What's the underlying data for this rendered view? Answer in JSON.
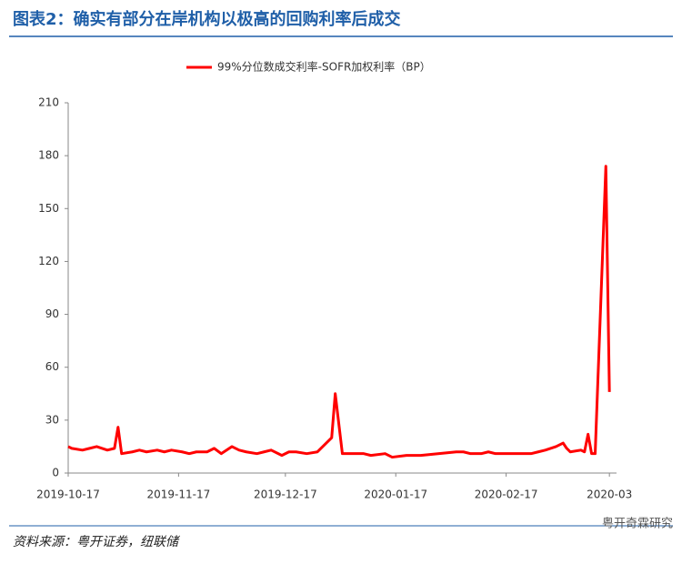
{
  "chart_data": {
    "type": "line",
    "title": "图表2：确实有部分在岸机构以极高的回购利率后成交",
    "source": "资料来源：粤开证券，纽联储",
    "watermark": "粤开奇霖研究",
    "x": [
      "2019-10-17",
      "2019-10-18",
      "2019-10-21",
      "2019-10-23",
      "2019-10-25",
      "2019-10-28",
      "2019-10-30",
      "2019-10-31",
      "2019-11-01",
      "2019-11-04",
      "2019-11-06",
      "2019-11-08",
      "2019-11-11",
      "2019-11-13",
      "2019-11-15",
      "2019-11-18",
      "2019-11-20",
      "2019-11-22",
      "2019-11-25",
      "2019-11-27",
      "2019-11-29",
      "2019-12-02",
      "2019-12-04",
      "2019-12-06",
      "2019-12-09",
      "2019-12-11",
      "2019-12-13",
      "2019-12-16",
      "2019-12-18",
      "2019-12-20",
      "2019-12-23",
      "2019-12-26",
      "2019-12-30",
      "2019-12-31",
      "2020-01-02",
      "2020-01-06",
      "2020-01-08",
      "2020-01-10",
      "2020-01-14",
      "2020-01-16",
      "2020-01-20",
      "2020-01-22",
      "2020-01-24",
      "2020-02-03",
      "2020-02-05",
      "2020-02-07",
      "2020-02-10",
      "2020-02-12",
      "2020-02-14",
      "2020-02-18",
      "2020-02-20",
      "2020-02-24",
      "2020-02-26",
      "2020-02-28",
      "2020-03-02",
      "2020-03-04",
      "2020-03-05",
      "2020-03-06",
      "2020-03-09",
      "2020-03-10",
      "2020-03-11",
      "2020-03-12",
      "2020-03-13",
      "2020-03-16",
      "2020-03-17"
    ],
    "series": [
      {
        "name": "99%分位数成交利率-SOFR加权利率（BP）",
        "color": "#ff0000",
        "values": [
          15,
          14,
          13,
          14,
          15,
          13,
          14,
          26,
          11,
          12,
          13,
          12,
          13,
          12,
          13,
          12,
          11,
          12,
          12,
          14,
          11,
          15,
          13,
          12,
          11,
          12,
          13,
          10,
          12,
          12,
          11,
          12,
          20,
          45,
          11,
          11,
          11,
          10,
          11,
          9,
          10,
          10,
          10,
          12,
          12,
          11,
          11,
          12,
          11,
          11,
          11,
          11,
          12,
          13,
          15,
          17,
          14,
          12,
          13,
          12,
          22,
          11,
          11,
          174,
          46
        ]
      }
    ],
    "xlim": [
      "2019-10-17",
      "2020-03-19"
    ],
    "xticks": [
      "2019-10-17",
      "2019-11-17",
      "2019-12-17",
      "2020-01-17",
      "2020-02-17",
      {
        "value": "2020-03-17",
        "label": "2020-03"
      }
    ],
    "ylim": [
      0,
      210
    ],
    "yticks": [
      0,
      30,
      60,
      90,
      120,
      150,
      180,
      210
    ],
    "grid": false,
    "legend": "top"
  }
}
